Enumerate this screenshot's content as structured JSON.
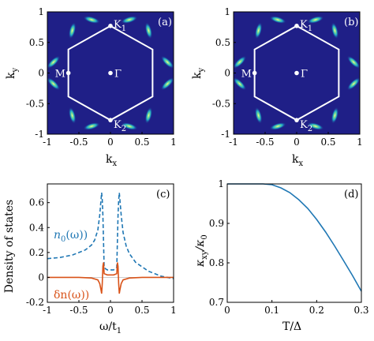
{
  "panels": [
    {
      "id": "a",
      "label": "(a)",
      "type": "heatmap",
      "background_color": "#1f1f87",
      "xlabel_main": "k",
      "xlabel_sub": "x",
      "ylabel_main": "k",
      "ylabel_sub": "y",
      "xlim": [
        -1,
        1
      ],
      "ylim": [
        -1,
        1
      ],
      "xticks": [
        -1,
        -0.5,
        0,
        0.5,
        1
      ],
      "xtick_labels": [
        "-1",
        "-0.5",
        "0",
        "0.5",
        "1"
      ],
      "yticks": [
        -1,
        -0.5,
        0,
        0.5,
        1
      ],
      "ytick_labels": [
        "-1",
        "-0.5",
        "0",
        "0.5",
        "1"
      ],
      "hexagon_vertices": [
        [
          0,
          0.77
        ],
        [
          0.667,
          0.385
        ],
        [
          0.667,
          -0.385
        ],
        [
          0,
          -0.77
        ],
        [
          -0.667,
          -0.385
        ],
        [
          -0.667,
          0.385
        ]
      ],
      "points": [
        {
          "x": 0,
          "y": 0.77,
          "main": "K",
          "sub": "1"
        },
        {
          "x": 0,
          "y": -0.77,
          "main": "K",
          "sub": "2"
        },
        {
          "x": -0.667,
          "y": 0,
          "main": "M",
          "sub": ""
        },
        {
          "x": 0,
          "y": 0,
          "main": "Γ",
          "sub": ""
        }
      ]
    },
    {
      "id": "b",
      "label": "(b)",
      "type": "heatmap",
      "background_color": "#1f1f87",
      "xlabel_main": "k",
      "xlabel_sub": "x",
      "ylabel_main": "k",
      "ylabel_sub": "y",
      "xlim": [
        -1,
        1
      ],
      "ylim": [
        -1,
        1
      ],
      "xticks": [
        -1,
        -0.5,
        0,
        0.5,
        1
      ],
      "xtick_labels": [
        "-1",
        "-0.5",
        "0",
        "0.5",
        "1"
      ],
      "yticks": [
        -1,
        -0.5,
        0,
        0.5,
        1
      ],
      "ytick_labels": [
        "-1",
        "-0.5",
        "0",
        "0.5",
        "1"
      ],
      "hexagon_vertices": [
        [
          0,
          0.77
        ],
        [
          0.667,
          0.385
        ],
        [
          0.667,
          -0.385
        ],
        [
          0,
          -0.77
        ],
        [
          -0.667,
          -0.385
        ],
        [
          -0.667,
          0.385
        ]
      ],
      "points": [
        {
          "x": 0,
          "y": 0.77,
          "main": "K",
          "sub": "1"
        },
        {
          "x": 0,
          "y": -0.77,
          "main": "K",
          "sub": "2"
        },
        {
          "x": -0.667,
          "y": 0,
          "main": "M",
          "sub": ""
        },
        {
          "x": 0,
          "y": 0,
          "main": "Γ",
          "sub": ""
        }
      ]
    }
  ],
  "panel_c": {
    "label": "(c)",
    "ylabel": "Density of states",
    "xlabel_main": "ω/t",
    "xlabel_sub": "1",
    "xlim": [
      -1,
      1
    ],
    "ylim": [
      -0.2,
      0.75
    ],
    "xticks": [
      -1,
      -0.5,
      0,
      0.5,
      1
    ],
    "xtick_labels": [
      "-1",
      "-0.5",
      "0",
      "0.5",
      "1"
    ],
    "yticks": [
      -0.2,
      0,
      0.2,
      0.4,
      0.6
    ],
    "ytick_labels": [
      "-0.2",
      "0",
      "0.2",
      "0.4",
      "0.6"
    ],
    "series": [
      {
        "name": "n0(ω))",
        "color": "#1f77b4",
        "dash": true,
        "x": [
          -1,
          -0.8,
          -0.6,
          -0.4,
          -0.3,
          -0.25,
          -0.2,
          -0.17,
          -0.15,
          -0.14,
          -0.13,
          -0.12,
          -0.1,
          -0.08,
          -0.05,
          0,
          0.05,
          0.08,
          0.1,
          0.12,
          0.13,
          0.14,
          0.15,
          0.17,
          0.2,
          0.25,
          0.3,
          0.4,
          0.6,
          0.8,
          1
        ],
        "y": [
          0.15,
          0.16,
          0.18,
          0.22,
          0.26,
          0.3,
          0.38,
          0.5,
          0.62,
          0.68,
          0.62,
          0.5,
          0.08,
          0.07,
          0.06,
          0.06,
          0.06,
          0.07,
          0.08,
          0.5,
          0.62,
          0.68,
          0.62,
          0.5,
          0.36,
          0.25,
          0.19,
          0.12,
          0.05,
          0.01,
          -0.01
        ]
      },
      {
        "name": "δn(ω))",
        "color": "#d95319",
        "dash": false,
        "x": [
          -1,
          -0.5,
          -0.3,
          -0.2,
          -0.17,
          -0.15,
          -0.14,
          -0.13,
          -0.12,
          -0.11,
          -0.1,
          -0.05,
          0,
          0.05,
          0.1,
          0.11,
          0.12,
          0.13,
          0.14,
          0.15,
          0.17,
          0.2,
          0.3,
          0.5,
          1
        ],
        "y": [
          0,
          0,
          -0.005,
          -0.02,
          -0.05,
          -0.1,
          -0.13,
          -0.05,
          0.09,
          0.12,
          0.03,
          0.02,
          0.02,
          0.02,
          0.03,
          0.12,
          0.09,
          -0.05,
          -0.13,
          -0.1,
          -0.05,
          -0.02,
          -0.005,
          0,
          0
        ]
      }
    ],
    "label_n0_main": "n",
    "label_n0_sub": "0",
    "label_n0_rest": "(ω))",
    "label_dn": "δn(ω))"
  },
  "panel_d": {
    "label": "(d)",
    "ylabel_main": "κ",
    "ylabel_sub1": "xy",
    "ylabel_slash": "/κ",
    "ylabel_sub2": "0",
    "xlabel": "T/Δ",
    "xlim": [
      0,
      0.3
    ],
    "ylim": [
      0.7,
      1.0
    ],
    "xticks": [
      0,
      0.1,
      0.2,
      0.3
    ],
    "xtick_labels": [
      "0",
      "0.1",
      "0.2",
      "0.3"
    ],
    "yticks": [
      0.7,
      0.8,
      0.9,
      1.0
    ],
    "ytick_labels": [
      "0.7",
      "0.8",
      "0.9",
      "1"
    ],
    "series": [
      {
        "color": "#1f77b4",
        "x": [
          0,
          0.05,
          0.08,
          0.1,
          0.12,
          0.14,
          0.16,
          0.18,
          0.2,
          0.22,
          0.24,
          0.26,
          0.28,
          0.3
        ],
        "y": [
          1.0,
          1.0,
          1.0,
          0.998,
          0.99,
          0.978,
          0.96,
          0.938,
          0.91,
          0.878,
          0.843,
          0.806,
          0.768,
          0.728
        ]
      }
    ]
  }
}
